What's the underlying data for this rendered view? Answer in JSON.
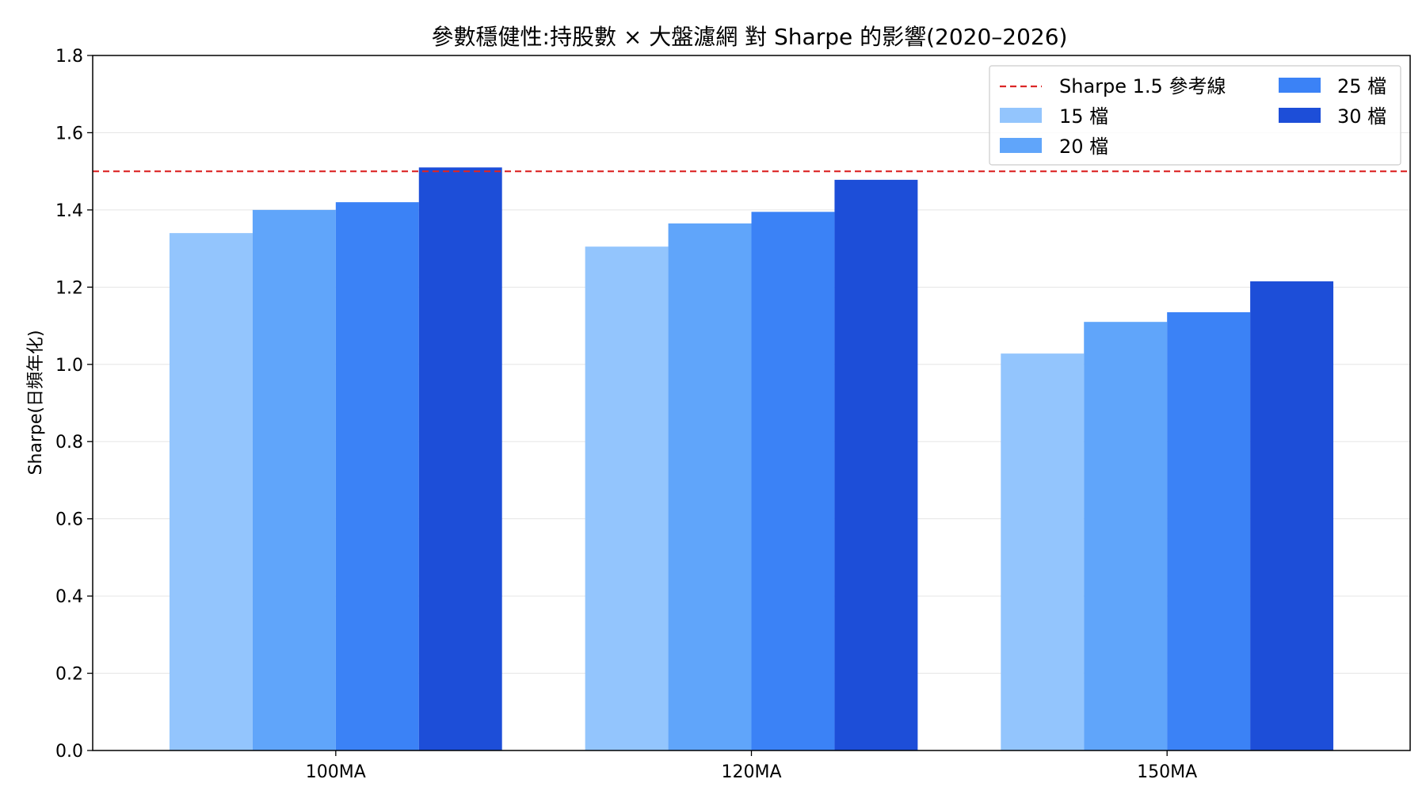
{
  "chart_data": {
    "type": "bar",
    "title": "參數穩健性:持股數 × 大盤濾網 對 Sharpe 的影響(2020–2026)",
    "xlabel": "",
    "ylabel": "Sharpe(日頻年化)",
    "ylim": [
      0,
      1.8
    ],
    "yticks": [
      "0.0",
      "0.2",
      "0.4",
      "0.6",
      "0.8",
      "1.0",
      "1.2",
      "1.4",
      "1.6",
      "1.8"
    ],
    "grid": true,
    "legend_position": "top-right",
    "categories": [
      "100MA",
      "120MA",
      "150MA"
    ],
    "series": [
      {
        "name": "15 檔",
        "color": "#93c5fd",
        "values": [
          1.34,
          1.305,
          1.028
        ]
      },
      {
        "name": "20 檔",
        "color": "#60a5fa",
        "values": [
          1.4,
          1.365,
          1.11
        ]
      },
      {
        "name": "25 檔",
        "color": "#3b82f6",
        "values": [
          1.42,
          1.395,
          1.135
        ]
      },
      {
        "name": "30 檔",
        "color": "#1d4ed8",
        "values": [
          1.51,
          1.478,
          1.215
        ]
      }
    ],
    "reference_line": {
      "name": "Sharpe 1.5 參考線",
      "value": 1.5,
      "color": "#dc2626"
    }
  }
}
